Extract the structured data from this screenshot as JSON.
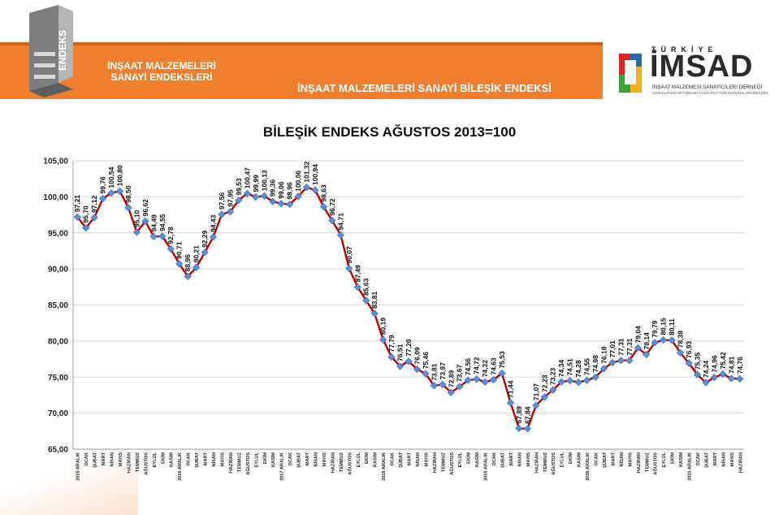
{
  "header": {
    "logo_word": "ENDEKS",
    "subtitle_line1": "İNŞAAT MALZEMELERİ",
    "subtitle_line2": "SANAYİ ENDEKSLERİ",
    "band_title": "İNŞAAT MALZEMELERİ SANAYİ BİLEŞİK ENDEKSİ"
  },
  "brand": {
    "top": "TÜRKİYE",
    "name": "İMSAD",
    "sub1": "İNŞAAT MALZEMESİ SANAYİCİLERİ DERNEĞİ",
    "sub2": "ASSOCIATION OF TURKISH CONSTRUCTION MATERIAL PRODUCERS"
  },
  "colors": {
    "orange": "#ef7f2e",
    "line": "#c00000",
    "marker": "#5b8fd6",
    "brand_red": "#d7262a",
    "brand_blue": "#2a6bb0",
    "brand_green": "#3aa23b",
    "brand_yellow": "#f2b01e"
  },
  "chart_data": {
    "type": "line",
    "title": "BİLEŞİK ENDEKS AĞUSTOS 2013=100",
    "ylim": [
      65,
      105
    ],
    "yticks": [
      "65,00",
      "70,00",
      "75,00",
      "80,00",
      "85,00",
      "90,00",
      "95,00",
      "100,00",
      "105,00"
    ],
    "grid": true,
    "categories": [
      "2015 ARALIK",
      "OCAK",
      "ŞUBAT",
      "MART",
      "NİSAN",
      "MAYIS",
      "HAZİRAN",
      "TEMMUZ",
      "AĞUSTOS",
      "EYLÜL",
      "EKİM",
      "KASIM",
      "2016 ARALIK",
      "OCAK",
      "ŞUBAT",
      "MART",
      "NİSAN",
      "MAYIS",
      "HAZİRAN",
      "TEMMUZ",
      "AĞUSTOS",
      "EYLÜL",
      "EKİM",
      "KASIM",
      "2017 ARALIK",
      "OCAK",
      "ŞUBAT",
      "MART",
      "NİSAN",
      "MAYIS",
      "HAZİRAN",
      "TEMMUZ",
      "AĞUSTOS",
      "EYLÜL",
      "EKİM",
      "KASIM",
      "2018 ARALIK",
      "OCAK",
      "ŞUBAT",
      "MART",
      "NİSAN",
      "MAYIS",
      "HAZİRAN",
      "TEMMUZ",
      "AĞUSTOS",
      "EYLÜL",
      "EKİM",
      "KASIM",
      "2019 ARALIK",
      "OCAK",
      "ŞUBAT",
      "MART",
      "NİSAN",
      "MAYIS",
      "HAZİRAN",
      "TEMMUZ",
      "AĞUSTOS",
      "EYLÜL",
      "EKİM",
      "KASIM",
      "2020 ARALIK",
      "OCAK",
      "ŞUBAT",
      "MART",
      "NİSAN",
      "MAYIS",
      "HAZİRAN",
      "TEMMUZ",
      "AĞUSTOS",
      "EYLÜL",
      "EKİM",
      "KASIM",
      "2021 ARALIK",
      "OCAK",
      "ŞUBAT",
      "MART",
      "NİSAN",
      "MAYIS",
      "HAZİRAN"
    ],
    "values": [
      97.21,
      95.7,
      97.12,
      99.76,
      100.54,
      100.8,
      98.5,
      95.1,
      96.62,
      94.49,
      94.55,
      92.78,
      90.71,
      88.96,
      90.21,
      92.29,
      94.43,
      97.56,
      97.95,
      99.53,
      100.47,
      99.99,
      100.13,
      99.36,
      99.06,
      98.96,
      100.06,
      101.32,
      100.94,
      98.63,
      96.72,
      94.71,
      90.07,
      87.49,
      85.63,
      83.81,
      80.19,
      77.79,
      76.51,
      77.2,
      76.09,
      75.46,
      73.81,
      73.97,
      72.89,
      73.67,
      74.56,
      74.72,
      74.32,
      74.63,
      75.53,
      71.44,
      67.89,
      67.84,
      71.07,
      72.23,
      73.23,
      74.34,
      74.51,
      74.28,
      74.55,
      74.98,
      76.18,
      77.01,
      77.31,
      77.31,
      79.04,
      78.14,
      79.79,
      80.15,
      80.11,
      78.38,
      76.93,
      75.35,
      74.24,
      74.96,
      75.42,
      74.81,
      74.76
    ],
    "labels": [
      "97,21",
      "95,70",
      "97,12",
      "99,76",
      "100,54",
      "100,80",
      "98,50",
      "95,10",
      "96,62",
      "94,49",
      "94,55",
      "92,78",
      "90,71",
      "88,96",
      "90,21",
      "92,29",
      "94,43",
      "97,56",
      "97,95",
      "99,53",
      "100,47",
      "99,99",
      "100,13",
      "99,36",
      "99,06",
      "98,96",
      "100,06",
      "101,32",
      "100,94",
      "98,63",
      "96,72",
      "94,71",
      "90,07",
      "87,49",
      "85,63",
      "83,81",
      "80,19",
      "77,79",
      "76,51",
      "77,20",
      "76,09",
      "75,46",
      "73,81",
      "73,97",
      "72,89",
      "73,67",
      "74,56",
      "74,72",
      "74,32",
      "74,63",
      "75,53",
      "71,44",
      "67,89",
      "67,84",
      "71,07",
      "72,23",
      "73,23",
      "74,34",
      "74,51",
      "74,28",
      "74,55",
      "74,98",
      "76,18",
      "77,01",
      "77,31",
      "77,31",
      "79,04",
      "78,14",
      "79,79",
      "80,15",
      "80,11",
      "78,38",
      "76,93",
      "75,35",
      "74,24",
      "74,96",
      "75,42",
      "74,81",
      "74,76"
    ]
  }
}
